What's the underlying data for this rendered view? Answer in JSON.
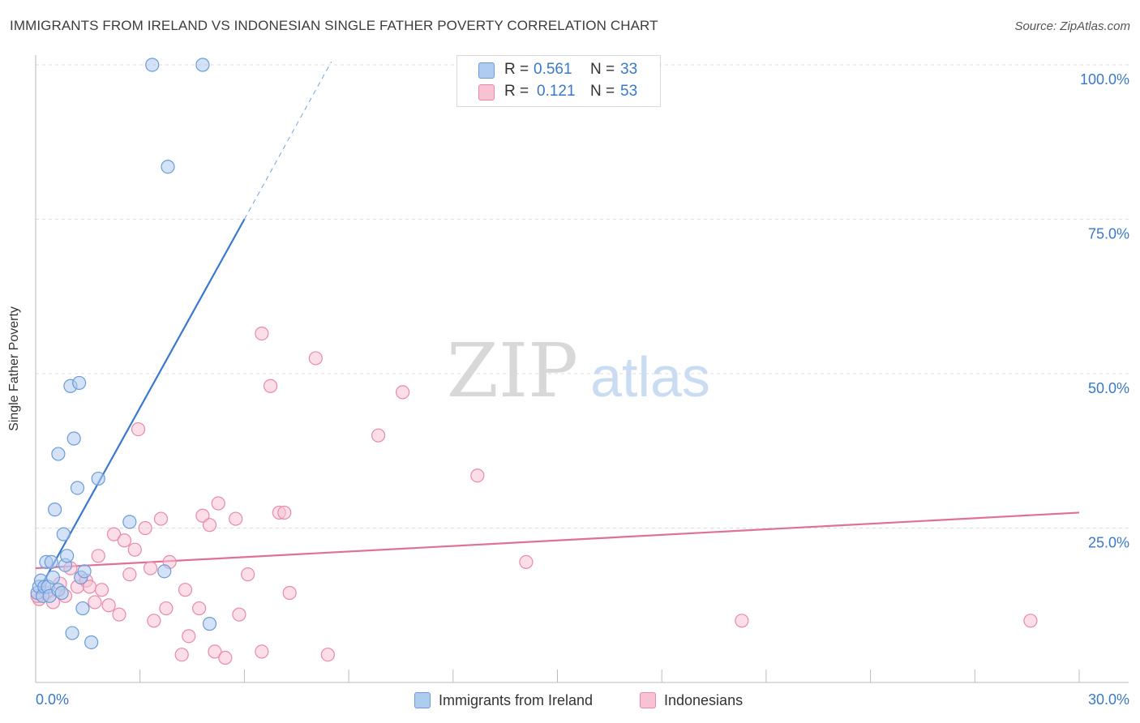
{
  "header": {
    "title": "IMMIGRANTS FROM IRELAND VS INDONESIAN SINGLE FATHER POVERTY CORRELATION CHART",
    "source": "Source: ZipAtlas.com"
  },
  "watermark": {
    "zip": "ZIP",
    "atlas": "atlas"
  },
  "legend_top": {
    "rows": [
      {
        "r_label": "R =",
        "r_value": "0.561",
        "n_label": "N =",
        "n_value": "33"
      },
      {
        "r_label": "R =",
        "r_value": "0.121",
        "n_label": "N =",
        "n_value": "53"
      }
    ]
  },
  "legend_bottom": {
    "items": [
      {
        "label": "Immigrants from Ireland"
      },
      {
        "label": "Indonesians"
      }
    ]
  },
  "colors": {
    "blue_fill": "#aecbf0",
    "blue_stroke": "#6c9bd6",
    "blue_line": "#3a78d0",
    "pink_fill": "#f7c3d3",
    "pink_stroke": "#e889a8",
    "pink_line": "#e07099",
    "axis_text": "#3a78c9",
    "grid": "#dddddd"
  },
  "chart_data": {
    "type": "scatter",
    "ylabel": "Single Father Poverty",
    "xlim": [
      0,
      30
    ],
    "ylim": [
      0,
      100
    ],
    "x_tick_labels": [
      {
        "value": 0,
        "label": "0.0%"
      },
      {
        "value": 30,
        "label": "30.0%"
      }
    ],
    "y_tick_labels": [
      {
        "value": 25,
        "label": "25.0%"
      },
      {
        "value": 50,
        "label": "50.0%"
      },
      {
        "value": 75,
        "label": "75.0%"
      },
      {
        "value": 100,
        "label": "100.0%"
      }
    ],
    "grid": true,
    "series": [
      {
        "name": "Immigrants from Ireland",
        "color": "blue",
        "points": [
          [
            0.05,
            14.5
          ],
          [
            0.1,
            15.5
          ],
          [
            0.15,
            16.5
          ],
          [
            0.2,
            14.0
          ],
          [
            0.25,
            15.5
          ],
          [
            0.3,
            19.5
          ],
          [
            0.35,
            15.5
          ],
          [
            0.4,
            14.0
          ],
          [
            0.45,
            19.5
          ],
          [
            0.5,
            17.0
          ],
          [
            0.55,
            28.0
          ],
          [
            0.65,
            37.0
          ],
          [
            0.65,
            15.0
          ],
          [
            0.75,
            14.5
          ],
          [
            0.8,
            24.0
          ],
          [
            0.85,
            19.0
          ],
          [
            0.9,
            20.5
          ],
          [
            1.0,
            48.0
          ],
          [
            1.05,
            8.0
          ],
          [
            1.1,
            39.5
          ],
          [
            1.2,
            31.5
          ],
          [
            1.25,
            48.5
          ],
          [
            1.3,
            17.0
          ],
          [
            1.35,
            12.0
          ],
          [
            1.4,
            18.0
          ],
          [
            1.6,
            6.5
          ],
          [
            1.8,
            33.0
          ],
          [
            2.7,
            26.0
          ],
          [
            3.35,
            100.0
          ],
          [
            3.7,
            18.0
          ],
          [
            3.8,
            83.5
          ],
          [
            4.8,
            100.0
          ],
          [
            5.0,
            9.5
          ]
        ],
        "trend": {
          "x": [
            0.05,
            6.0
          ],
          "y": [
            14.5,
            75.0
          ],
          "dashed_to": [
            8.5,
            100.5
          ]
        }
      },
      {
        "name": "Indonesians",
        "color": "pink",
        "points": [
          [
            0.1,
            13.5
          ],
          [
            0.3,
            14.5
          ],
          [
            0.5,
            13.0
          ],
          [
            0.7,
            16.0
          ],
          [
            0.85,
            14.0
          ],
          [
            1.0,
            18.5
          ],
          [
            1.2,
            15.5
          ],
          [
            1.3,
            17.0
          ],
          [
            1.45,
            16.5
          ],
          [
            1.55,
            15.5
          ],
          [
            1.7,
            13.0
          ],
          [
            1.8,
            20.5
          ],
          [
            1.9,
            15.0
          ],
          [
            2.1,
            12.5
          ],
          [
            2.25,
            24.0
          ],
          [
            2.4,
            11.0
          ],
          [
            2.55,
            23.0
          ],
          [
            2.7,
            17.5
          ],
          [
            2.85,
            21.5
          ],
          [
            2.95,
            41.0
          ],
          [
            3.15,
            25.0
          ],
          [
            3.3,
            18.5
          ],
          [
            3.4,
            10.0
          ],
          [
            3.6,
            26.5
          ],
          [
            3.75,
            12.0
          ],
          [
            3.85,
            19.5
          ],
          [
            4.2,
            4.5
          ],
          [
            4.3,
            15.0
          ],
          [
            4.4,
            7.5
          ],
          [
            4.7,
            12.0
          ],
          [
            4.8,
            27.0
          ],
          [
            5.0,
            25.5
          ],
          [
            5.15,
            5.0
          ],
          [
            5.25,
            29.0
          ],
          [
            5.45,
            4.0
          ],
          [
            5.75,
            26.5
          ],
          [
            5.85,
            11.0
          ],
          [
            6.1,
            17.5
          ],
          [
            6.5,
            5.0
          ],
          [
            6.5,
            56.5
          ],
          [
            6.75,
            48.0
          ],
          [
            7.0,
            27.5
          ],
          [
            7.15,
            27.5
          ],
          [
            7.3,
            14.5
          ],
          [
            8.05,
            52.5
          ],
          [
            8.4,
            4.5
          ],
          [
            9.85,
            40.0
          ],
          [
            10.55,
            47.0
          ],
          [
            12.7,
            33.5
          ],
          [
            14.1,
            19.5
          ],
          [
            20.3,
            10.0
          ],
          [
            28.6,
            10.0
          ],
          [
            0.05,
            14.0
          ]
        ],
        "trend": {
          "x": [
            0,
            30
          ],
          "y": [
            18.5,
            27.5
          ]
        }
      }
    ]
  }
}
